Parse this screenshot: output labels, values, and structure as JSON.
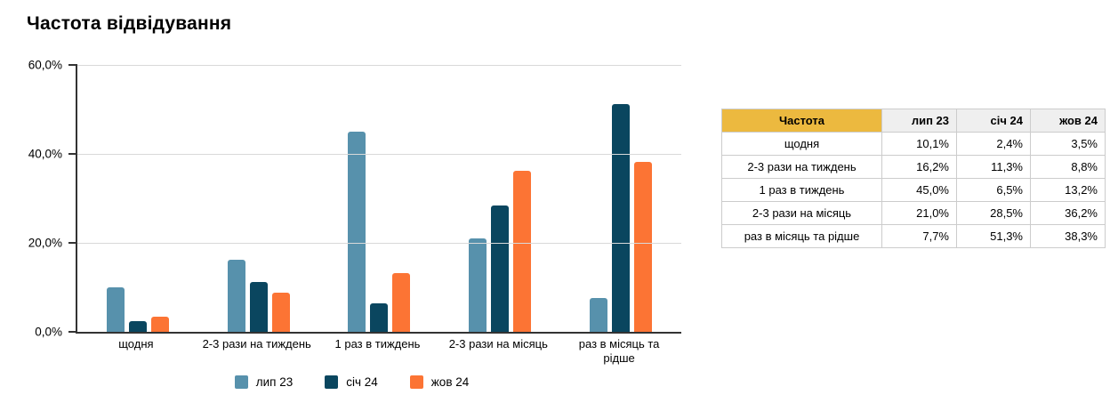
{
  "chart_data": {
    "type": "bar",
    "title": "Частота відвідування",
    "categories": [
      "щодня",
      "2-3 рази на тиждень",
      "1 раз в тиждень",
      "2-3 рази на місяць",
      "раз в місяць та рідше"
    ],
    "series": [
      {
        "name": "лип 23",
        "color": "#5791AC",
        "values": [
          10.1,
          16.2,
          45.0,
          21.0,
          7.7
        ]
      },
      {
        "name": "січ 24",
        "color": "#0A465F",
        "values": [
          2.4,
          11.3,
          6.5,
          28.5,
          51.3
        ]
      },
      {
        "name": "жов 24",
        "color": "#FC7434",
        "values": [
          3.5,
          8.8,
          13.2,
          36.2,
          38.3
        ]
      }
    ],
    "ylim": [
      0,
      60
    ],
    "yticks": [
      {
        "value": 60,
        "label": "60,0%"
      },
      {
        "value": 40,
        "label": "40,0%"
      },
      {
        "value": 20,
        "label": "20,0%"
      },
      {
        "value": 0,
        "label": "0,0%"
      }
    ],
    "grid": true,
    "legend_position": "bottom"
  },
  "table": {
    "corner_label": "Частота",
    "columns": [
      "лип 23",
      "січ 24",
      "жов 24"
    ],
    "rows": [
      {
        "label": "щодня",
        "values": [
          "10,1%",
          "2,4%",
          "3,5%"
        ]
      },
      {
        "label": "2-3 рази на тиждень",
        "values": [
          "16,2%",
          "11,3%",
          "8,8%"
        ]
      },
      {
        "label": "1 раз в тиждень",
        "values": [
          "45,0%",
          "6,5%",
          "13,2%"
        ]
      },
      {
        "label": "2-3 рази на місяць",
        "values": [
          "21,0%",
          "28,5%",
          "36,2%"
        ]
      },
      {
        "label": "раз в місяць та рідше",
        "values": [
          "7,7%",
          "51,3%",
          "38,3%"
        ]
      }
    ]
  },
  "colors": {
    "series_1": "#5791AC",
    "series_2": "#0A465F",
    "series_3": "#FC7434",
    "table_header_yellow": "#ECB93F",
    "table_header_gray": "#EFEFEF",
    "gridline": "#D9D9D9",
    "axis": "#333333"
  }
}
